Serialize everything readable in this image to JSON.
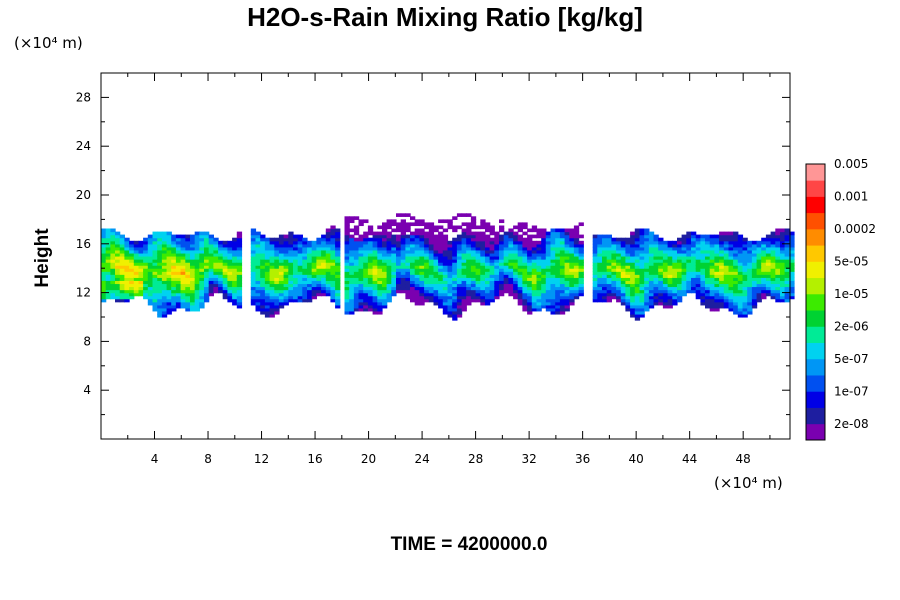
{
  "chart_data": {
    "type": "heatmap",
    "title": "H2O-s-Rain Mixing Ratio [kg/kg]",
    "ylabel": "Height",
    "xlabel": "",
    "x_unit_label": "(×10⁴ m)",
    "y_unit_label": "(×10⁴ m)",
    "xlim": [
      0,
      51.5
    ],
    "ylim": [
      0,
      30
    ],
    "x_ticks": [
      4,
      8,
      12,
      16,
      20,
      24,
      28,
      32,
      36,
      40,
      44,
      48
    ],
    "y_ticks": [
      4,
      8,
      12,
      16,
      20,
      24,
      28
    ],
    "x_minor_step": 2,
    "y_minor_step": 2,
    "grid": false,
    "colorbar": {
      "placement": "right",
      "colors": [
        "#7a00b0",
        "#1e1ea0",
        "#0000e6",
        "#0050f0",
        "#0096f5",
        "#00d2f0",
        "#00eb96",
        "#00d232",
        "#3ceb00",
        "#b4f000",
        "#f0f000",
        "#ffc800",
        "#ff8c00",
        "#ff5000",
        "#ff0000",
        "#ff4646",
        "#ff9696"
      ],
      "labels": [
        "2e-08",
        "1e-07",
        "5e-07",
        "2e-06",
        "1e-05",
        "5e-05",
        "0.0002",
        "0.001",
        "0.005"
      ]
    },
    "field": {
      "description_levels": "index into colorbar.colors",
      "band_bottom_height": 10.8,
      "band_top_height": 17.0,
      "upper_cloud": {
        "x_range": [
          18,
          36
        ],
        "height_range": [
          15.5,
          18.5
        ]
      }
    },
    "caption": "TIME = 4200000.0"
  }
}
